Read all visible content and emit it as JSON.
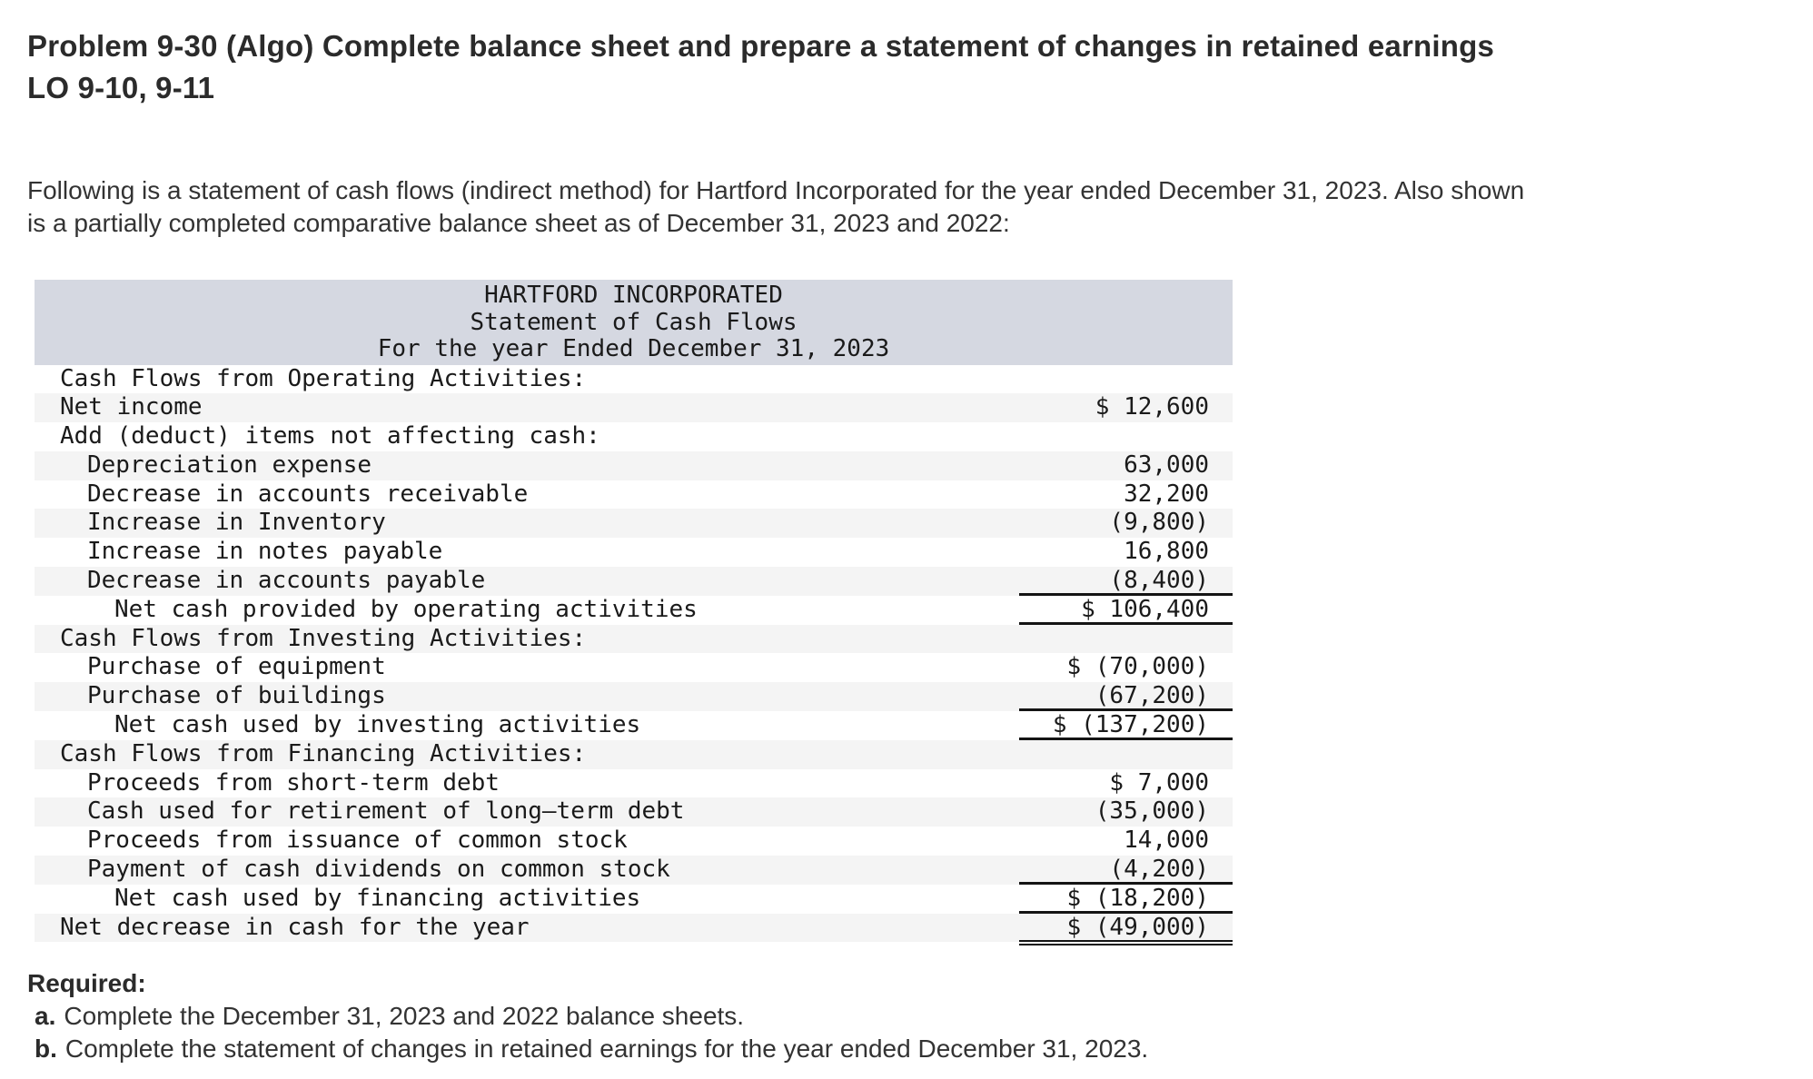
{
  "page": {
    "title": "Problem 9-30 (Algo) Complete balance sheet and prepare a statement of changes in retained earnings\nLO 9-10, 9-11",
    "intro": "Following is a statement of cash flows (indirect method) for Hartford Incorporated for the year ended December 31, 2023. Also shown\nis a partially completed comparative balance sheet as of December 31, 2023 and 2022:"
  },
  "statement": {
    "header": [
      "HARTFORD INCORPORATED",
      "Statement of Cash Flows",
      "For the year Ended December 31, 2023"
    ],
    "rows": [
      {
        "label": "Cash Flows from Operating Activities:",
        "amount": "",
        "indent": 0,
        "underline": "none"
      },
      {
        "label": "Net income",
        "amount": "$ 12,600",
        "indent": 0,
        "underline": "none"
      },
      {
        "label": "Add (deduct) items not affecting cash:",
        "amount": "",
        "indent": 0,
        "underline": "none"
      },
      {
        "label": "Depreciation expense",
        "amount": "63,000",
        "indent": 1,
        "underline": "none"
      },
      {
        "label": "Decrease in accounts receivable",
        "amount": "32,200",
        "indent": 1,
        "underline": "none"
      },
      {
        "label": "Increase in Inventory",
        "amount": "(9,800)",
        "indent": 1,
        "underline": "none"
      },
      {
        "label": "Increase in notes payable",
        "amount": "16,800",
        "indent": 1,
        "underline": "none"
      },
      {
        "label": "Decrease in accounts payable",
        "amount": "(8,400)",
        "indent": 1,
        "underline": "single"
      },
      {
        "label": "Net cash provided by operating activities",
        "amount": "$ 106,400",
        "indent": 2,
        "underline": "single"
      },
      {
        "label": "Cash Flows from Investing Activities:",
        "amount": "",
        "indent": 0,
        "underline": "none"
      },
      {
        "label": "Purchase of equipment",
        "amount": "$ (70,000)",
        "indent": 1,
        "underline": "none"
      },
      {
        "label": "Purchase of buildings",
        "amount": "(67,200)",
        "indent": 1,
        "underline": "single"
      },
      {
        "label": "Net cash used by investing activities",
        "amount": "$ (137,200)",
        "indent": 2,
        "underline": "single"
      },
      {
        "label": "Cash Flows from Financing Activities:",
        "amount": "",
        "indent": 0,
        "underline": "none"
      },
      {
        "label": "Proceeds from short-term debt",
        "amount": "$ 7,000",
        "indent": 1,
        "underline": "none"
      },
      {
        "label": "Cash used for retirement of long–term debt",
        "amount": "(35,000)",
        "indent": 1,
        "underline": "none"
      },
      {
        "label": "Proceeds from issuance of common stock",
        "amount": "14,000",
        "indent": 1,
        "underline": "none"
      },
      {
        "label": "Payment of cash dividends on common stock",
        "amount": "(4,200)",
        "indent": 1,
        "underline": "single"
      },
      {
        "label": "Net cash used by financing activities",
        "amount": "$ (18,200)",
        "indent": 2,
        "underline": "single"
      },
      {
        "label": "Net decrease in cash for the year",
        "amount": "$ (49,000)",
        "indent": 0,
        "underline": "double"
      }
    ]
  },
  "required": {
    "heading": "Required:",
    "items": [
      {
        "prefix": "a.",
        "text": "Complete the December 31, 2023 and 2022 balance sheets."
      },
      {
        "prefix": "b.",
        "text": "Complete the statement of changes in retained earnings for the year ended December 31, 2023."
      }
    ]
  },
  "colors": {
    "header_bg": "#d5d8e1",
    "stripe_bg": "#f4f4f4",
    "border": "#141414",
    "table_text": "#1a1a1a",
    "title_text": "#2b2b2b",
    "body_text": "#333333"
  }
}
